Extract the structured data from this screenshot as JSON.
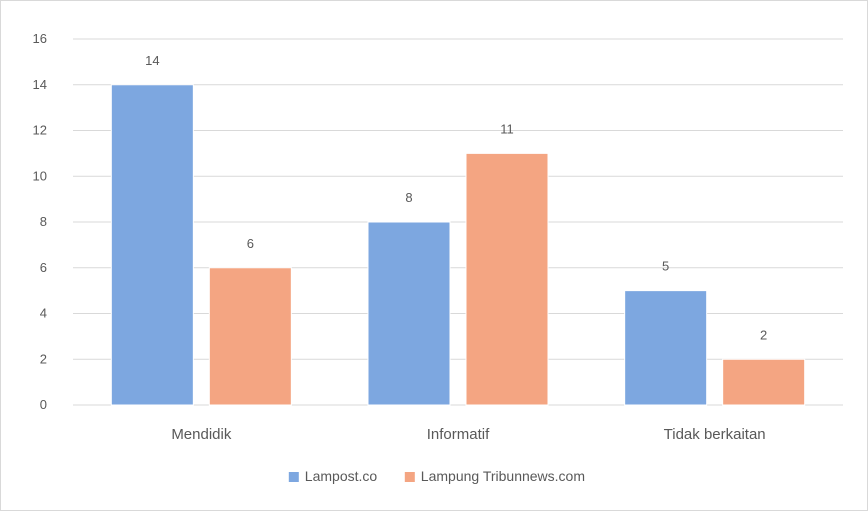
{
  "chart_data": {
    "type": "bar",
    "title": "",
    "xlabel": "",
    "ylabel": "",
    "categories": [
      "Mendidik",
      "Informatif",
      "Tidak berkaitan"
    ],
    "series": [
      {
        "name": "Lampost.co",
        "values": [
          14,
          8,
          5
        ],
        "color": "#7da7e0"
      },
      {
        "name": "Lampung Tribunnews.com",
        "values": [
          6,
          11,
          2
        ],
        "color": "#f4a582"
      }
    ],
    "ylim": [
      0,
      16
    ],
    "yticks": [
      "0",
      "2",
      "4",
      "6",
      "8",
      "10",
      "12",
      "14",
      "16"
    ],
    "grid": true,
    "legend_position": "bottom"
  }
}
